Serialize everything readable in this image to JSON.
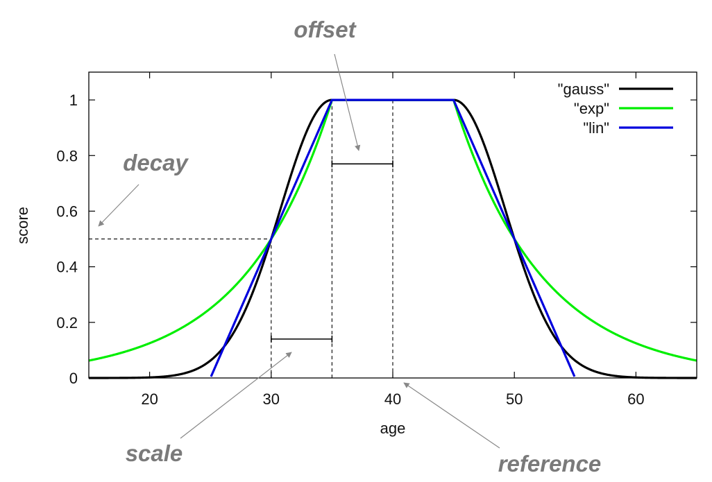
{
  "chart_data": {
    "type": "line",
    "xlabel": "age",
    "ylabel": "score",
    "xlim": [
      15,
      65
    ],
    "ylim": [
      0,
      1.1
    ],
    "x_ticks": [
      20,
      30,
      40,
      50,
      60
    ],
    "y_ticks": [
      0,
      0.2,
      0.4,
      0.6,
      0.8,
      1
    ],
    "y_tick_labels": [
      "0",
      "0.2",
      "0.4",
      "0.6",
      "0.8",
      "1"
    ],
    "legend_position": "top-right",
    "function_params": {
      "origin": 40,
      "offset": 5,
      "scale": 5,
      "decay": 0.5
    },
    "series": [
      {
        "name": "\"gauss\"",
        "color": "#000000",
        "kind": "gauss"
      },
      {
        "name": "\"exp\"",
        "color": "#00ee00",
        "kind": "exp"
      },
      {
        "name": "\"lin\"",
        "color": "#0000dd",
        "kind": "lin"
      }
    ],
    "annotations": [
      {
        "text": "offset",
        "target": "offset range (35–40 at score 0.77)"
      },
      {
        "text": "decay",
        "target": "score 0.5 level"
      },
      {
        "text": "scale",
        "target": "scale range (30–35 at score 0.14)"
      },
      {
        "text": "reference",
        "target": "age 40"
      }
    ],
    "guides": {
      "decay_level": 0.5,
      "vlines": [
        30,
        35,
        40
      ],
      "offset_bracket": {
        "x": [
          35,
          40
        ],
        "y": 0.77
      },
      "scale_bracket": {
        "x": [
          30,
          35
        ],
        "y": 0.14
      }
    }
  }
}
